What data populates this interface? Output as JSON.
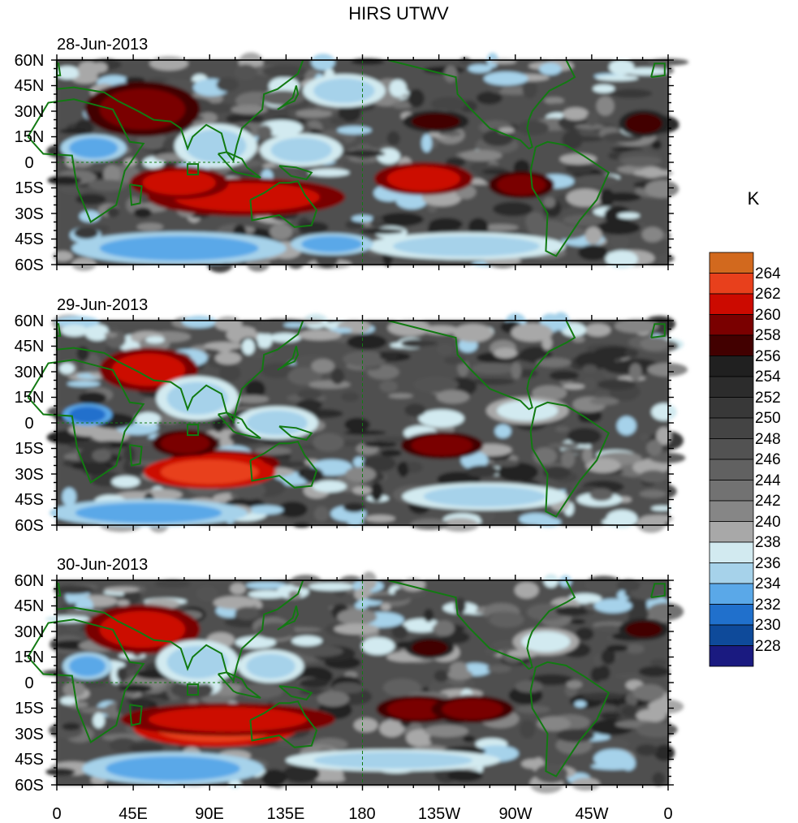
{
  "title": "HIRS UTWV",
  "panels": [
    {
      "date": "28-Jun-2013"
    },
    {
      "date": "29-Jun-2013"
    },
    {
      "date": "30-Jun-2013"
    }
  ],
  "lat_ticks": [
    "60N",
    "45N",
    "30N",
    "15N",
    "0",
    "15S",
    "30S",
    "45S",
    "60S"
  ],
  "lon_ticks": [
    "0",
    "45E",
    "90E",
    "135E",
    "180",
    "135W",
    "90W",
    "45W",
    "0"
  ],
  "colorbar": {
    "unit": "K",
    "labels": [
      "264",
      "262",
      "260",
      "258",
      "256",
      "254",
      "252",
      "250",
      "248",
      "246",
      "244",
      "242",
      "240",
      "238",
      "236",
      "234",
      "232",
      "230",
      "228"
    ],
    "colors": [
      "#d2691e",
      "#e8401c",
      "#cc0a00",
      "#7a0000",
      "#420000",
      "#202020",
      "#2c2c2c",
      "#383838",
      "#444444",
      "#525252",
      "#616161",
      "#727272",
      "#868686",
      "#a8a8a8",
      "#d2eaf0",
      "#a6d2ea",
      "#5aa8e8",
      "#2070cc",
      "#0e4a9a",
      "#1a1a80"
    ]
  }
}
